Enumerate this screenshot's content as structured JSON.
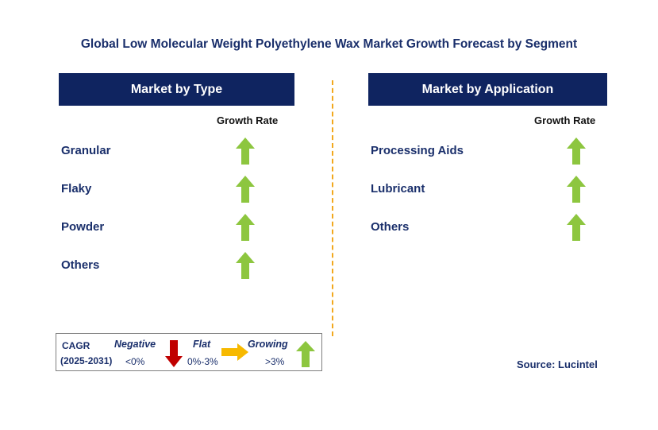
{
  "title": "Global Low Molecular Weight Polyethylene Wax Market Growth Forecast by Segment",
  "colors": {
    "header_bg": "#0f2460",
    "text_navy": "#1a2f6b",
    "growing_arrow": "#8dc63f",
    "negative_arrow": "#c00000",
    "flat_arrow": "#f7b900",
    "divider": "#f2a81d"
  },
  "chart_data": [
    {
      "type": "table",
      "title": "Market by Type",
      "column_header": "Growth Rate",
      "rows": [
        {
          "segment": "Granular",
          "trend": "growing"
        },
        {
          "segment": "Flaky",
          "trend": "growing"
        },
        {
          "segment": "Powder",
          "trend": "growing"
        },
        {
          "segment": "Others",
          "trend": "growing"
        }
      ]
    },
    {
      "type": "table",
      "title": "Market by Application",
      "column_header": "Growth Rate",
      "rows": [
        {
          "segment": "Processing Aids",
          "trend": "growing"
        },
        {
          "segment": "Lubricant",
          "trend": "growing"
        },
        {
          "segment": "Others",
          "trend": "growing"
        }
      ]
    }
  ],
  "legend": {
    "cagr_label": "CAGR",
    "period": "(2025-2031)",
    "negative": {
      "label": "Negative",
      "range": "<0%",
      "icon": "down-arrow-icon"
    },
    "flat": {
      "label": "Flat",
      "range": "0%-3%",
      "icon": "right-arrow-icon"
    },
    "growing": {
      "label": "Growing",
      "range": ">3%",
      "icon": "up-arrow-icon"
    }
  },
  "source": "Source: Lucintel"
}
